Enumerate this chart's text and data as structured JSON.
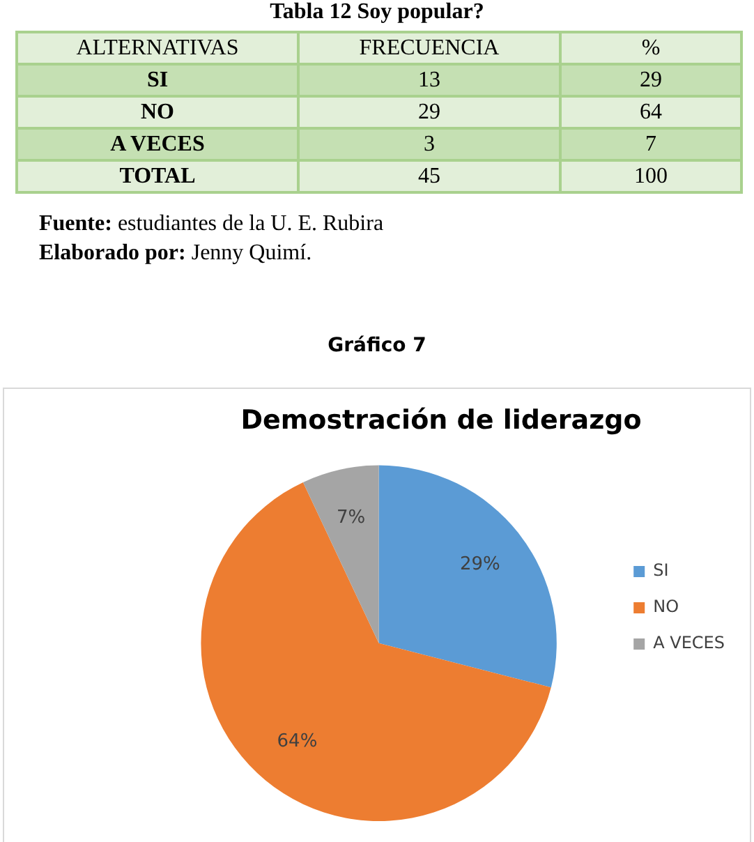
{
  "chart_data": [
    {
      "type": "other",
      "title": "Tabla 12 Soy popular?",
      "xlabel": "ALTERNATIVAS",
      "categories": [
        "SI",
        "NO",
        "A VECES",
        "TOTAL"
      ],
      "series": [
        {
          "name": "FRECUENCIA",
          "values": [
            13,
            29,
            3,
            45
          ],
          "colors": [
            "#c5e0b3",
            "#e2efd9",
            "#c5e0b3",
            "#e2efd9"
          ]
        },
        {
          "name": "%",
          "values": [
            29,
            64,
            7,
            100
          ],
          "colors": [
            "#c5e0b3",
            "#e2efd9",
            "#c5e0b3",
            "#e2efd9"
          ]
        }
      ],
      "data_labels": true,
      "annotations": [
        "Fuente: estudiantes de la U. E. Rubira",
        "Elaborado por: Jenny Quimí."
      ]
    },
    {
      "type": "pie",
      "title": "Demostración de liderazgo",
      "annotations": [
        "Gráfico 7"
      ],
      "categories": [
        "SI",
        "NO",
        "A VECES"
      ],
      "values": [
        29,
        64,
        7
      ],
      "colors": [
        "#5b9bd5",
        "#ed7d31",
        "#a5a5a5"
      ],
      "value_labels": [
        "29%",
        "64%",
        "7%"
      ],
      "legend": "right"
    }
  ]
}
